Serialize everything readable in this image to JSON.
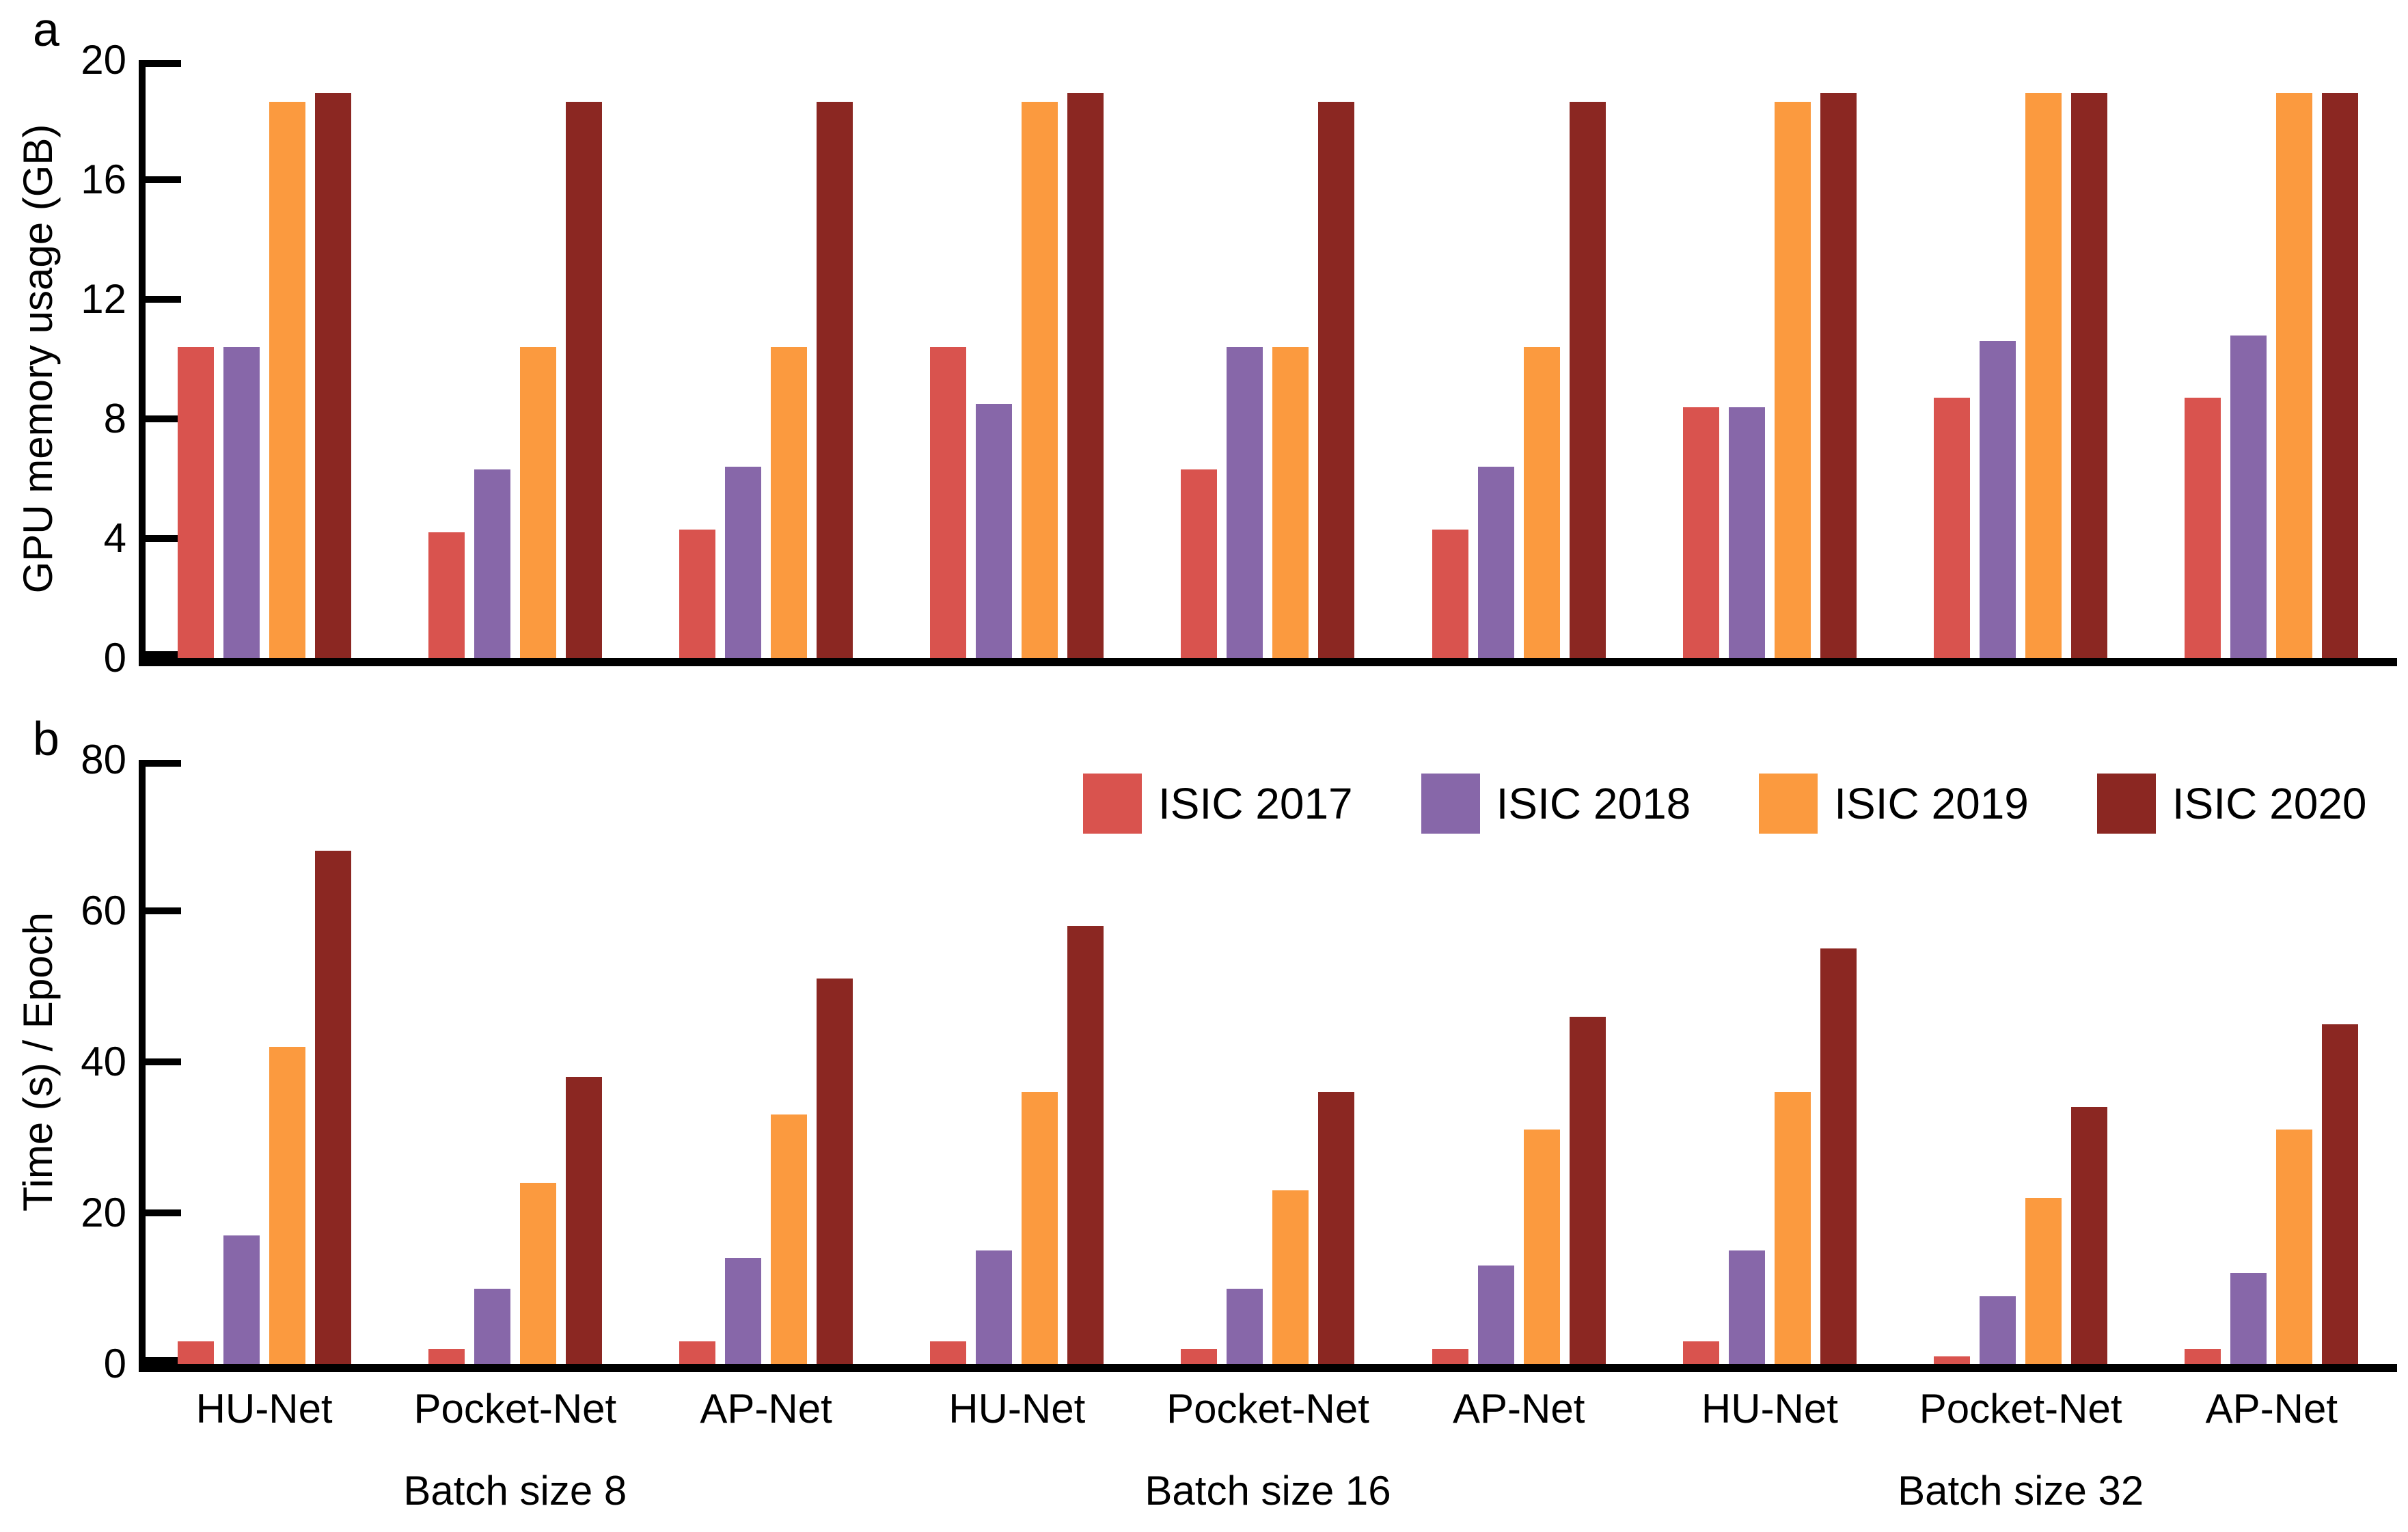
{
  "figure": {
    "panel_labels": [
      "a",
      "b"
    ]
  },
  "x_axis": {
    "group_labels": [
      "HU-Net",
      "Pocket-Net",
      "AP-Net",
      "HU-Net",
      "Pocket-Net",
      "AP-Net",
      "HU-Net",
      "Pocket-Net",
      "AP-Net"
    ],
    "batch_labels": [
      "Batch size 8",
      "Batch size 16",
      "Batch size 32"
    ]
  },
  "legend": {
    "entries": [
      {
        "label": "ISIC 2017",
        "color": "#d9534e"
      },
      {
        "label": "ISIC 2018",
        "color": "#8767a9"
      },
      {
        "label": "ISIC 2019",
        "color": "#fb9a3f"
      },
      {
        "label": "ISIC 2020",
        "color": "#8b2722"
      }
    ]
  },
  "chart_data": [
    {
      "type": "bar",
      "panel": "a",
      "title": "",
      "ylabel": "GPU memory usage (GB)",
      "ylim": [
        0,
        20
      ],
      "yticks": [
        0,
        4,
        8,
        12,
        16,
        20
      ],
      "grid": false,
      "legend_position": "none",
      "categories": [
        "HU-Net (Batch size 8)",
        "Pocket-Net (Batch size 8)",
        "AP-Net (Batch size 8)",
        "HU-Net (Batch size 16)",
        "Pocket-Net (Batch size 16)",
        "AP-Net (Batch size 16)",
        "HU-Net (Batch size 32)",
        "Pocket-Net (Batch size 32)",
        "AP-Net (Batch size 32)"
      ],
      "series": [
        {
          "name": "ISIC 2017",
          "color": "#d9534e",
          "values": [
            10.4,
            4.2,
            4.3,
            10.4,
            6.3,
            4.3,
            8.4,
            8.7,
            8.7
          ]
        },
        {
          "name": "ISIC 2018",
          "color": "#8767a9",
          "values": [
            10.4,
            6.3,
            6.4,
            8.5,
            10.4,
            6.4,
            8.4,
            10.6,
            10.8
          ]
        },
        {
          "name": "ISIC 2019",
          "color": "#fb9a3f",
          "values": [
            18.6,
            10.4,
            10.4,
            18.6,
            10.4,
            10.4,
            18.6,
            18.9,
            18.9
          ]
        },
        {
          "name": "ISIC 2020",
          "color": "#8b2722",
          "values": [
            18.9,
            18.6,
            18.6,
            18.9,
            18.6,
            18.6,
            18.9,
            18.9,
            18.9
          ]
        }
      ]
    },
    {
      "type": "bar",
      "panel": "b",
      "title": "",
      "ylabel": "Time (s) / Epoch",
      "ylim": [
        0,
        80
      ],
      "yticks": [
        0,
        20,
        40,
        60,
        80
      ],
      "grid": false,
      "legend_position": "top-inside",
      "categories": [
        "HU-Net (Batch size 8)",
        "Pocket-Net (Batch size 8)",
        "AP-Net (Batch size 8)",
        "HU-Net (Batch size 16)",
        "Pocket-Net (Batch size 16)",
        "AP-Net (Batch size 16)",
        "HU-Net (Batch size 32)",
        "Pocket-Net (Batch size 32)",
        "AP-Net (Batch size 32)"
      ],
      "series": [
        {
          "name": "ISIC 2017",
          "color": "#d9534e",
          "values": [
            3,
            2,
            3,
            3,
            2,
            2,
            3,
            1,
            2
          ]
        },
        {
          "name": "ISIC 2018",
          "color": "#8767a9",
          "values": [
            17,
            10,
            14,
            15,
            10,
            13,
            15,
            9,
            12
          ]
        },
        {
          "name": "ISIC 2019",
          "color": "#fb9a3f",
          "values": [
            42,
            24,
            33,
            36,
            23,
            31,
            36,
            22,
            31
          ]
        },
        {
          "name": "ISIC 2020",
          "color": "#8b2722",
          "values": [
            68,
            38,
            51,
            58,
            36,
            46,
            55,
            34,
            45
          ]
        }
      ]
    }
  ]
}
